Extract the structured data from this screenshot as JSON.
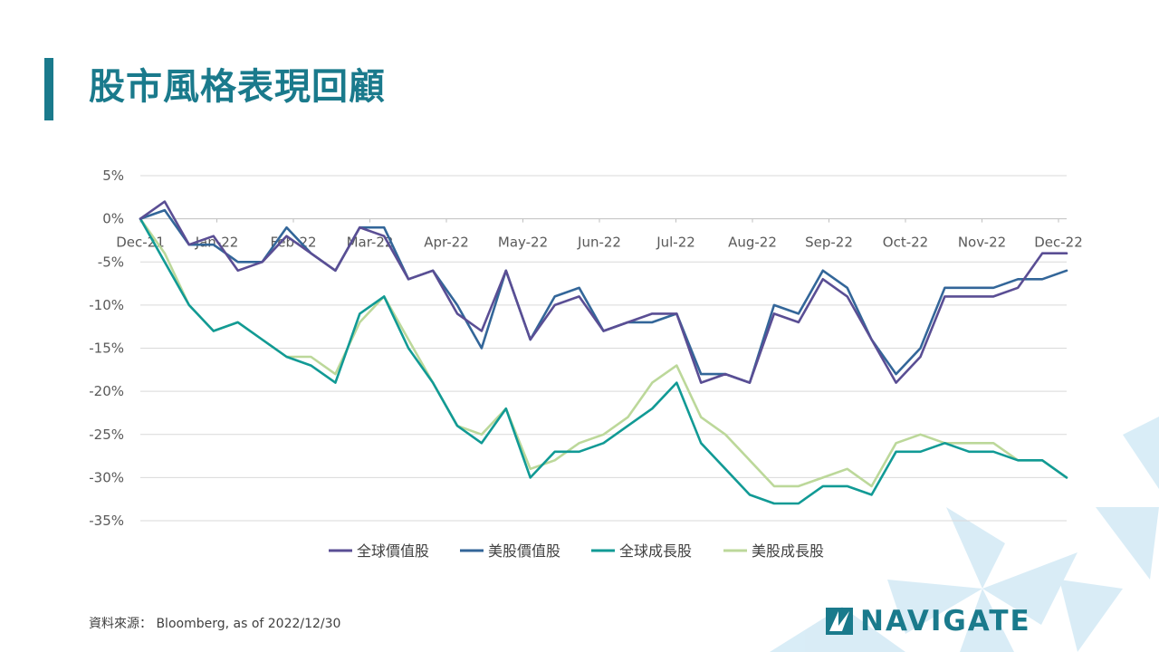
{
  "title": "股市風格表現回顧",
  "source_note": "資料來源： Bloomberg,  as of 2022/12/30",
  "logo": {
    "text": "NAVIGATE",
    "icon": "navigate-logo-icon"
  },
  "colors": {
    "accent": "#1a7a8c",
    "decor": "#d5ebf6"
  },
  "chart_data": {
    "type": "line",
    "x_tick_labels": [
      "Dec-21",
      "Jan-22",
      "Feb-22",
      "Mar-22",
      "Apr-22",
      "May-22",
      "Jun-22",
      "Jul-22",
      "Aug-22",
      "Sep-22",
      "Oct-22",
      "Nov-22",
      "Dec-22"
    ],
    "ylim": [
      -35,
      5
    ],
    "y_ticks": [
      5,
      0,
      -5,
      -10,
      -15,
      -20,
      -25,
      -30,
      -35
    ],
    "y_tick_labels": [
      "5%",
      "0%",
      "-5%",
      "-10%",
      "-15%",
      "-20%",
      "-25%",
      "-30%",
      "-35%"
    ],
    "grid": true,
    "legend_position": "bottom",
    "series": [
      {
        "name": "全球價值股",
        "color": "#5a4e94",
        "values": [
          0,
          2,
          -3,
          -2,
          -6,
          -5,
          -2,
          -4,
          -6,
          -1,
          -2,
          -7,
          -6,
          -11,
          -13,
          -6,
          -14,
          -10,
          -9,
          -13,
          -12,
          -11,
          -11,
          -19,
          -18,
          -19,
          -11,
          -12,
          -7,
          -9,
          -14,
          -19,
          -16,
          -9,
          -9,
          -9,
          -8,
          -4,
          -4
        ]
      },
      {
        "name": "美股價值股",
        "color": "#336699",
        "values": [
          0,
          1,
          -3,
          -3,
          -5,
          -5,
          -1,
          -4,
          -6,
          -1,
          -1,
          -7,
          -6,
          -10,
          -15,
          -6,
          -14,
          -9,
          -8,
          -13,
          -12,
          -12,
          -11,
          -18,
          -18,
          -19,
          -10,
          -11,
          -6,
          -8,
          -14,
          -18,
          -15,
          -8,
          -8,
          -8,
          -7,
          -7,
          -6
        ]
      },
      {
        "name": "全球成長股",
        "color": "#119a95",
        "values": [
          0,
          -5,
          -10,
          -13,
          -12,
          -14,
          -16,
          -17,
          -19,
          -11,
          -9,
          -15,
          -19,
          -24,
          -26,
          -22,
          -30,
          -27,
          -27,
          -26,
          -24,
          -22,
          -19,
          -26,
          -29,
          -32,
          -33,
          -33,
          -31,
          -31,
          -32,
          -27,
          -27,
          -26,
          -27,
          -27,
          -28,
          -28,
          -30
        ]
      },
      {
        "name": "美股成長股",
        "color": "#bcd89a",
        "values": [
          0,
          -4,
          -10,
          -13,
          -12,
          -14,
          -16,
          -16,
          -18,
          -12,
          -9,
          -14,
          -19,
          -24,
          -25,
          -22,
          -29,
          -28,
          -26,
          -25,
          -23,
          -19,
          -17,
          -23,
          -25,
          -28,
          -31,
          -31,
          -30,
          -29,
          -31,
          -26,
          -25,
          -26,
          -26,
          -26,
          -28,
          -28,
          -30
        ]
      }
    ]
  }
}
